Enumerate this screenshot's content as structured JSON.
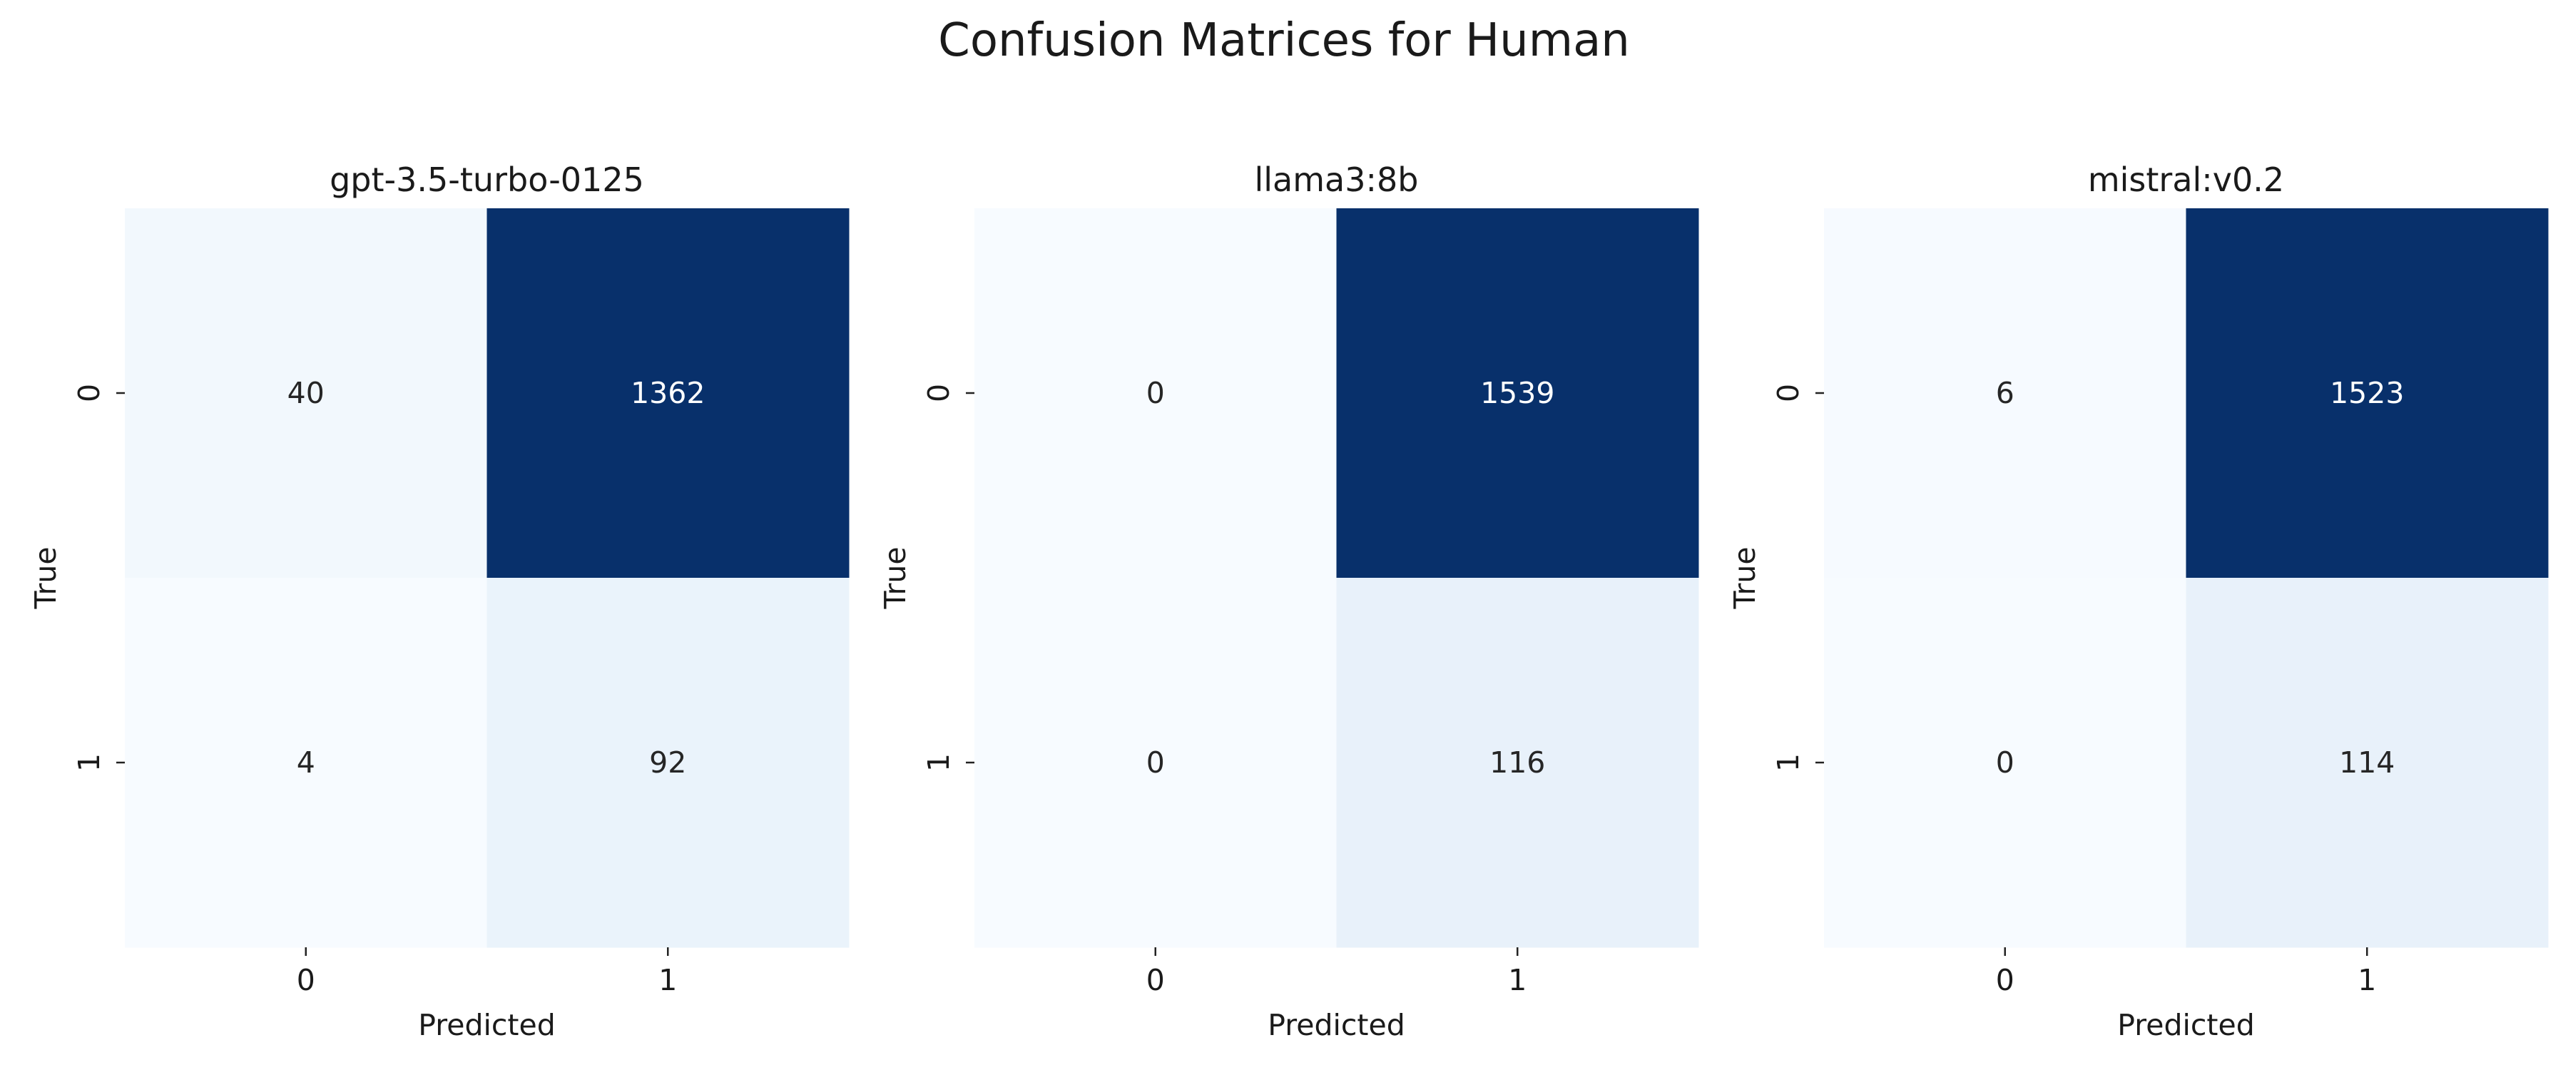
{
  "figure": {
    "title": "Confusion Matrices for Human"
  },
  "chart_data": [
    {
      "type": "heatmap",
      "title": "gpt-3.5-turbo-0125",
      "xlabel": "Predicted",
      "ylabel": "True",
      "x_categories": [
        "0",
        "1"
      ],
      "y_categories": [
        "0",
        "1"
      ],
      "values": [
        [
          40,
          1362
        ],
        [
          4,
          92
        ]
      ],
      "colormap": "Blues",
      "colorbar": false,
      "annotations": true
    },
    {
      "type": "heatmap",
      "title": "llama3:8b",
      "xlabel": "Predicted",
      "ylabel": "True",
      "x_categories": [
        "0",
        "1"
      ],
      "y_categories": [
        "0",
        "1"
      ],
      "values": [
        [
          0,
          1539
        ],
        [
          0,
          116
        ]
      ],
      "colormap": "Blues",
      "colorbar": false,
      "annotations": true
    },
    {
      "type": "heatmap",
      "title": "mistral:v0.2",
      "xlabel": "Predicted",
      "ylabel": "True",
      "x_categories": [
        "0",
        "1"
      ],
      "y_categories": [
        "0",
        "1"
      ],
      "values": [
        [
          6,
          1523
        ],
        [
          0,
          114
        ]
      ],
      "colormap": "Blues",
      "colorbar": false,
      "annotations": true
    }
  ]
}
